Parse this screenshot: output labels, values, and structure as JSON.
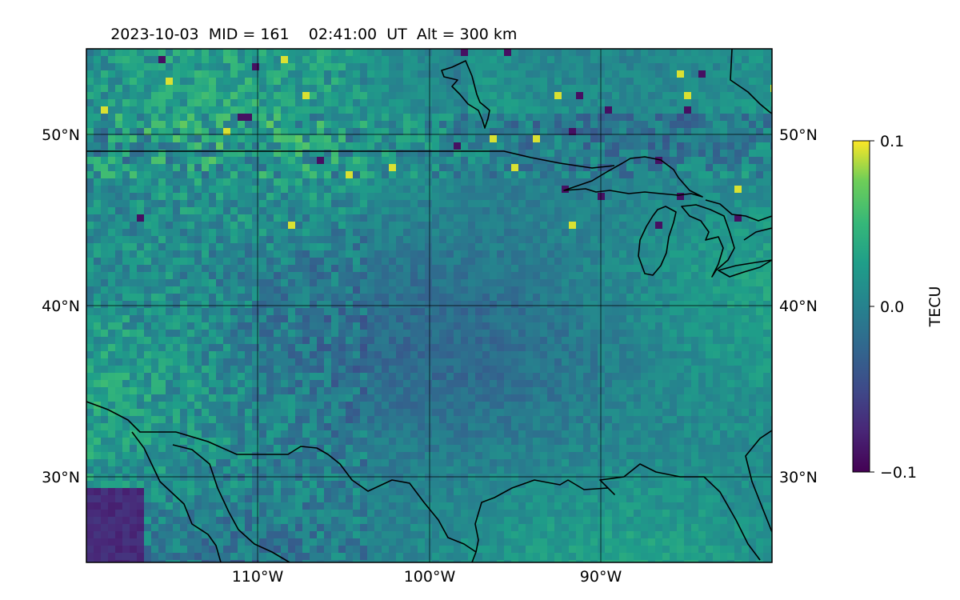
{
  "header": {
    "date": "2023-10-03",
    "mid": "MID = 161",
    "time": "02:41:00  UT",
    "altitude": "Alt = 300 km"
  },
  "map": {
    "lat_labels": [
      "50°N",
      "40°N",
      "30°N"
    ],
    "lon_labels": [
      "110°W",
      "100°W",
      "90°W"
    ],
    "lat_range": [
      25,
      55
    ],
    "lon_range": [
      -120,
      -80
    ],
    "gridlines": true
  },
  "colorbar": {
    "label": "TECU",
    "tick_labels": [
      "0.1",
      "0.0",
      "−0.1"
    ],
    "ticks": [
      0.1,
      0.0,
      -0.1
    ],
    "colormap": "viridis",
    "range": [
      -0.1,
      0.1
    ]
  },
  "colors": {
    "low": "#440154",
    "mid": "#21918c",
    "high": "#fde725",
    "coastline": "#000000"
  }
}
